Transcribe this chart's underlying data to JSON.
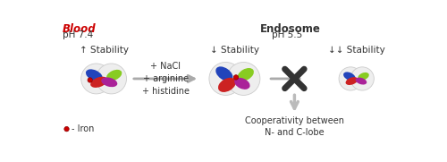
{
  "blood_label": "Blood",
  "blood_color": "#cc0000",
  "ph_blood": "pH 7.4",
  "endosome_label": "Endosome",
  "ph_endosome": "pH 5.5",
  "stability_up": "↑ Stability",
  "stability_down": "↓ Stability",
  "stability_down2": "↓↓ Stability",
  "arrow_label": "+ NaCl\n+ arginine\n+ histidine",
  "iron_label": "- Iron",
  "iron_color": "#cc0000",
  "cooperativity_label": "Cooperativity between\nN- and C-lobe",
  "bg_color": "#ffffff",
  "lobe_blue": "#2244bb",
  "lobe_green": "#88cc22",
  "lobe_red": "#cc2222",
  "lobe_purple": "#aa2299",
  "circle_color": "#eeeeee",
  "circle_edge": "#cccccc",
  "arrow_color": "#aaaaaa",
  "x_color": "#333333"
}
